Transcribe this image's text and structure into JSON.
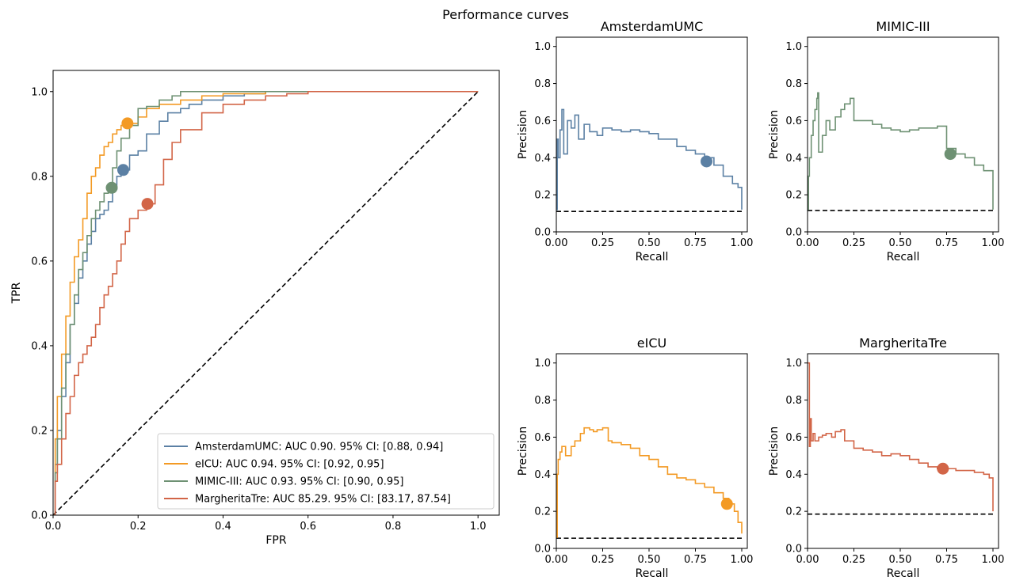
{
  "suptitle": "Performance curves",
  "colors": {
    "AmsterdamUMC": "#5b80a4",
    "eICU": "#f39a24",
    "MIMIC-III": "#6e9173",
    "MargheritaTre": "#d26547",
    "baseline": "#000000"
  },
  "chart_data": [
    {
      "type": "line",
      "title": "",
      "xlabel": "FPR",
      "ylabel": "TPR",
      "xlim": [
        0,
        1.05
      ],
      "ylim": [
        0,
        1.05
      ],
      "xticks": [
        "0.0",
        "0.2",
        "0.4",
        "0.6",
        "0.8",
        "1.0"
      ],
      "yticks": [
        "0.0",
        "0.2",
        "0.4",
        "0.6",
        "0.8",
        "1.0"
      ],
      "legend_position": "lower-right",
      "grid": false,
      "series": [
        {
          "name": "AmsterdamUMC: AUC 0.90. 95% CI: [0.88, 0.94]",
          "color_key": "AmsterdamUMC",
          "x": [
            0.0,
            0.005,
            0.01,
            0.02,
            0.03,
            0.04,
            0.05,
            0.06,
            0.07,
            0.08,
            0.09,
            0.1,
            0.11,
            0.12,
            0.13,
            0.14,
            0.15,
            0.16,
            0.18,
            0.2,
            0.22,
            0.25,
            0.27,
            0.3,
            0.32,
            0.35,
            0.4,
            0.45,
            0.5,
            0.6,
            0.7,
            0.8,
            0.9,
            1.0
          ],
          "y": [
            0.0,
            0.12,
            0.2,
            0.28,
            0.36,
            0.45,
            0.5,
            0.56,
            0.6,
            0.64,
            0.67,
            0.7,
            0.71,
            0.72,
            0.74,
            0.77,
            0.8,
            0.815,
            0.85,
            0.86,
            0.9,
            0.93,
            0.95,
            0.96,
            0.97,
            0.98,
            0.99,
            0.995,
            1.0,
            1.0,
            1.0,
            1.0,
            1.0,
            1.0
          ]
        },
        {
          "name": "eICU: AUC 0.94. 95% CI: [0.92, 0.95]",
          "color_key": "eICU",
          "x": [
            0.0,
            0.005,
            0.01,
            0.02,
            0.03,
            0.04,
            0.05,
            0.06,
            0.07,
            0.08,
            0.09,
            0.1,
            0.11,
            0.12,
            0.13,
            0.14,
            0.15,
            0.16,
            0.175,
            0.2,
            0.22,
            0.25,
            0.3,
            0.35,
            0.4,
            0.5,
            0.6,
            0.7,
            0.8,
            0.9,
            1.0
          ],
          "y": [
            0.0,
            0.18,
            0.28,
            0.38,
            0.47,
            0.55,
            0.61,
            0.65,
            0.7,
            0.76,
            0.8,
            0.82,
            0.85,
            0.87,
            0.88,
            0.9,
            0.91,
            0.92,
            0.925,
            0.94,
            0.96,
            0.97,
            0.98,
            0.99,
            0.995,
            1.0,
            1.0,
            1.0,
            1.0,
            1.0,
            1.0
          ]
        },
        {
          "name": "MIMIC-III: AUC 0.93. 95% CI: [0.90, 0.95]",
          "color_key": "MIMIC-III",
          "x": [
            0.0,
            0.005,
            0.01,
            0.02,
            0.03,
            0.04,
            0.05,
            0.06,
            0.07,
            0.08,
            0.09,
            0.1,
            0.11,
            0.12,
            0.13,
            0.14,
            0.15,
            0.16,
            0.18,
            0.2,
            0.22,
            0.25,
            0.28,
            0.3,
            0.35,
            0.4,
            0.5,
            0.6,
            0.7,
            0.8,
            0.9,
            1.0
          ],
          "y": [
            0.0,
            0.1,
            0.18,
            0.3,
            0.38,
            0.45,
            0.52,
            0.58,
            0.62,
            0.66,
            0.7,
            0.72,
            0.74,
            0.76,
            0.77,
            0.82,
            0.86,
            0.89,
            0.92,
            0.96,
            0.965,
            0.98,
            0.99,
            1.0,
            1.0,
            1.0,
            1.0,
            1.0,
            1.0,
            1.0,
            1.0,
            1.0
          ]
        },
        {
          "name": "MargheritaTre: AUC 85.29. 95% CI: [83.17, 87.54]",
          "color_key": "MargheritaTre",
          "x": [
            0.0,
            0.005,
            0.01,
            0.02,
            0.03,
            0.04,
            0.05,
            0.06,
            0.07,
            0.08,
            0.09,
            0.1,
            0.11,
            0.12,
            0.13,
            0.14,
            0.15,
            0.16,
            0.17,
            0.18,
            0.2,
            0.22,
            0.24,
            0.26,
            0.28,
            0.3,
            0.35,
            0.4,
            0.45,
            0.5,
            0.55,
            0.6,
            0.7,
            0.8,
            0.9,
            1.0
          ],
          "y": [
            0.0,
            0.08,
            0.12,
            0.18,
            0.24,
            0.28,
            0.33,
            0.36,
            0.38,
            0.4,
            0.42,
            0.45,
            0.49,
            0.52,
            0.54,
            0.57,
            0.6,
            0.64,
            0.67,
            0.7,
            0.72,
            0.735,
            0.78,
            0.84,
            0.88,
            0.91,
            0.95,
            0.97,
            0.98,
            0.99,
            0.995,
            1.0,
            1.0,
            1.0,
            1.0,
            1.0
          ]
        }
      ],
      "baseline": {
        "x": [
          0,
          1
        ],
        "y": [
          0,
          1
        ],
        "style": "dashed"
      },
      "operating_points": [
        {
          "series": "AmsterdamUMC",
          "x": 0.165,
          "y": 0.815
        },
        {
          "series": "eICU",
          "x": 0.175,
          "y": 0.925
        },
        {
          "series": "MIMIC-III",
          "x": 0.138,
          "y": 0.773
        },
        {
          "series": "MargheritaTre",
          "x": 0.222,
          "y": 0.735
        }
      ]
    },
    {
      "type": "line",
      "title": "AmsterdamUMC",
      "xlabel": "Recall",
      "ylabel": "Precision",
      "xlim": [
        0,
        1.03
      ],
      "ylim": [
        0,
        1.05
      ],
      "xticks": [
        "0.00",
        "0.25",
        "0.50",
        "0.75",
        "1.00"
      ],
      "yticks": [
        "0.0",
        "0.2",
        "0.4",
        "0.6",
        "0.8",
        "1.0"
      ],
      "series": [
        {
          "color_key": "AmsterdamUMC",
          "x": [
            0.0,
            0.005,
            0.01,
            0.02,
            0.03,
            0.04,
            0.06,
            0.08,
            0.1,
            0.12,
            0.15,
            0.18,
            0.22,
            0.25,
            0.3,
            0.35,
            0.4,
            0.45,
            0.5,
            0.55,
            0.6,
            0.65,
            0.7,
            0.75,
            0.8,
            0.85,
            0.9,
            0.95,
            0.98,
            1.0,
            1.0
          ],
          "y": [
            0.12,
            0.5,
            0.4,
            0.55,
            0.66,
            0.42,
            0.6,
            0.56,
            0.63,
            0.5,
            0.58,
            0.54,
            0.52,
            0.56,
            0.55,
            0.54,
            0.55,
            0.54,
            0.53,
            0.5,
            0.5,
            0.46,
            0.44,
            0.42,
            0.4,
            0.36,
            0.3,
            0.26,
            0.24,
            0.24,
            0.12
          ]
        }
      ],
      "baseline": {
        "y": 0.11,
        "style": "dashed"
      },
      "operating_point": {
        "x": 0.81,
        "y": 0.38
      }
    },
    {
      "type": "line",
      "title": "MIMIC-III",
      "xlabel": "Recall",
      "ylabel": "Precision",
      "xlim": [
        0,
        1.03
      ],
      "ylim": [
        0,
        1.05
      ],
      "xticks": [
        "0.00",
        "0.25",
        "0.50",
        "0.75",
        "1.00"
      ],
      "yticks": [
        "0.0",
        "0.2",
        "0.4",
        "0.6",
        "0.8",
        "1.0"
      ],
      "series": [
        {
          "color_key": "MIMIC-III",
          "x": [
            0.0,
            0.005,
            0.01,
            0.02,
            0.03,
            0.04,
            0.05,
            0.055,
            0.06,
            0.08,
            0.1,
            0.12,
            0.15,
            0.18,
            0.2,
            0.23,
            0.25,
            0.3,
            0.35,
            0.4,
            0.45,
            0.5,
            0.55,
            0.6,
            0.65,
            0.7,
            0.75,
            0.8,
            0.85,
            0.9,
            0.95,
            1.0,
            1.0
          ],
          "y": [
            0.12,
            0.3,
            0.4,
            0.52,
            0.6,
            0.66,
            0.72,
            0.75,
            0.43,
            0.52,
            0.6,
            0.55,
            0.62,
            0.66,
            0.69,
            0.72,
            0.6,
            0.6,
            0.58,
            0.56,
            0.55,
            0.54,
            0.55,
            0.56,
            0.56,
            0.57,
            0.45,
            0.42,
            0.4,
            0.36,
            0.33,
            0.31,
            0.12
          ]
        }
      ],
      "baseline": {
        "y": 0.115,
        "style": "dashed"
      },
      "operating_point": {
        "x": 0.77,
        "y": 0.42
      }
    },
    {
      "type": "line",
      "title": "eICU",
      "xlabel": "Recall",
      "ylabel": "Precision",
      "xlim": [
        0,
        1.03
      ],
      "ylim": [
        0,
        1.05
      ],
      "xticks": [
        "0.00",
        "0.25",
        "0.50",
        "0.75",
        "1.00"
      ],
      "yticks": [
        "0.0",
        "0.2",
        "0.4",
        "0.6",
        "0.8",
        "1.0"
      ],
      "series": [
        {
          "color_key": "eICU",
          "x": [
            0.0,
            0.005,
            0.01,
            0.02,
            0.03,
            0.05,
            0.08,
            0.1,
            0.13,
            0.15,
            0.18,
            0.2,
            0.22,
            0.25,
            0.28,
            0.3,
            0.35,
            0.4,
            0.45,
            0.5,
            0.55,
            0.6,
            0.65,
            0.7,
            0.75,
            0.8,
            0.85,
            0.9,
            0.93,
            0.96,
            0.98,
            1.0
          ],
          "y": [
            0.06,
            0.4,
            0.48,
            0.52,
            0.55,
            0.5,
            0.55,
            0.58,
            0.62,
            0.65,
            0.64,
            0.63,
            0.64,
            0.65,
            0.58,
            0.57,
            0.56,
            0.54,
            0.5,
            0.48,
            0.44,
            0.4,
            0.38,
            0.37,
            0.35,
            0.33,
            0.3,
            0.27,
            0.24,
            0.2,
            0.14,
            0.08
          ]
        }
      ],
      "baseline": {
        "y": 0.055,
        "style": "dashed"
      },
      "operating_point": {
        "x": 0.92,
        "y": 0.24
      }
    },
    {
      "type": "line",
      "title": "MargheritaTre",
      "xlabel": "Recall",
      "ylabel": "Precision",
      "xlim": [
        0,
        1.03
      ],
      "ylim": [
        0,
        1.05
      ],
      "xticks": [
        "0.00",
        "0.25",
        "0.50",
        "0.75",
        "1.00"
      ],
      "yticks": [
        "0.0",
        "0.2",
        "0.4",
        "0.6",
        "0.8",
        "1.0"
      ],
      "series": [
        {
          "color_key": "MargheritaTre",
          "x": [
            0.0,
            0.005,
            0.01,
            0.015,
            0.02,
            0.03,
            0.04,
            0.06,
            0.08,
            0.1,
            0.13,
            0.15,
            0.18,
            0.2,
            0.25,
            0.3,
            0.35,
            0.4,
            0.45,
            0.5,
            0.55,
            0.6,
            0.65,
            0.7,
            0.75,
            0.8,
            0.85,
            0.9,
            0.95,
            0.98,
            1.0,
            1.0
          ],
          "y": [
            1.0,
            1.0,
            0.55,
            0.7,
            0.58,
            0.62,
            0.58,
            0.6,
            0.61,
            0.62,
            0.6,
            0.63,
            0.64,
            0.58,
            0.54,
            0.53,
            0.52,
            0.5,
            0.51,
            0.5,
            0.48,
            0.46,
            0.44,
            0.43,
            0.43,
            0.42,
            0.42,
            0.41,
            0.4,
            0.38,
            0.26,
            0.2
          ]
        }
      ],
      "baseline": {
        "y": 0.185,
        "style": "dashed"
      },
      "operating_point": {
        "x": 0.73,
        "y": 0.43
      }
    }
  ]
}
